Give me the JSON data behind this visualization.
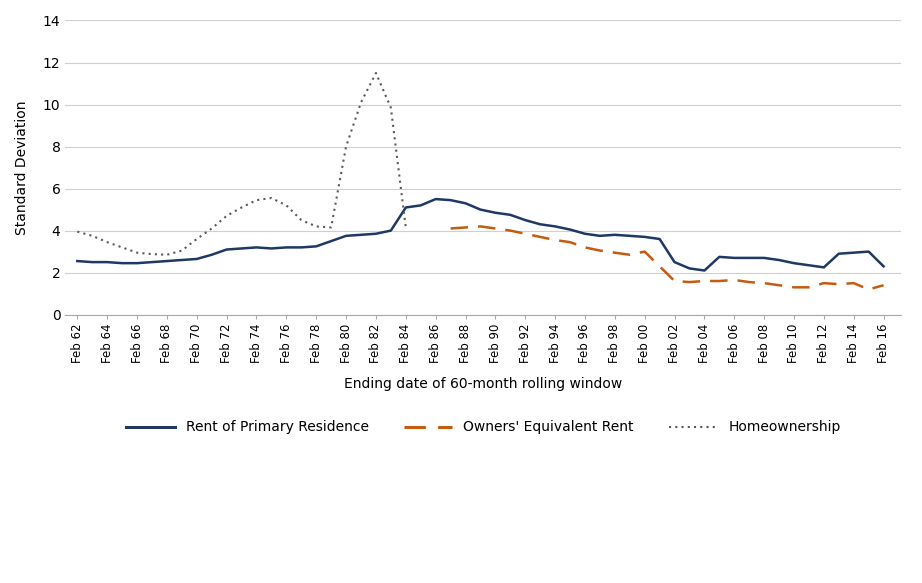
{
  "xlabel": "Ending date of 60-month rolling window",
  "ylabel": "Standard Deviation",
  "ylim": [
    0,
    14
  ],
  "yticks": [
    0,
    2,
    4,
    6,
    8,
    10,
    12,
    14
  ],
  "background_color": "#ffffff",
  "rent_color": "#1f3864",
  "oer_color": "#c55a11",
  "home_color": "#595959",
  "x_labels": [
    "Feb 62",
    "Feb 64",
    "Feb 66",
    "Feb 68",
    "Feb 70",
    "Feb 72",
    "Feb 74",
    "Feb 76",
    "Feb 78",
    "Feb 80",
    "Feb 82",
    "Feb 84",
    "Feb 86",
    "Feb 88",
    "Feb 90",
    "Feb 92",
    "Feb 94",
    "Feb 96",
    "Feb 98",
    "Feb 00",
    "Feb 02",
    "Feb 04",
    "Feb 06",
    "Feb 08",
    "Feb 10",
    "Feb 12",
    "Feb 14",
    "Feb 16"
  ],
  "rent_x": [
    1962,
    1963,
    1964,
    1965,
    1966,
    1967,
    1968,
    1969,
    1970,
    1971,
    1972,
    1973,
    1974,
    1975,
    1976,
    1977,
    1978,
    1979,
    1980,
    1981,
    1982,
    1983,
    1984,
    1985,
    1986,
    1987,
    1988,
    1989,
    1990,
    1991,
    1992,
    1993,
    1994,
    1995,
    1996,
    1997,
    1998,
    1999,
    2000,
    2001,
    2002,
    2003,
    2004,
    2005,
    2006,
    2007,
    2008,
    2009,
    2010,
    2011,
    2012,
    2013,
    2014,
    2015,
    2016
  ],
  "rent_y": [
    2.55,
    2.5,
    2.5,
    2.45,
    2.45,
    2.5,
    2.55,
    2.6,
    2.65,
    2.85,
    3.1,
    3.15,
    3.2,
    3.15,
    3.2,
    3.2,
    3.25,
    3.5,
    3.75,
    3.8,
    3.85,
    4.0,
    5.1,
    5.2,
    5.5,
    5.45,
    5.3,
    5.0,
    4.85,
    4.75,
    4.5,
    4.3,
    4.2,
    4.05,
    3.85,
    3.75,
    3.8,
    3.75,
    3.7,
    3.6,
    2.5,
    2.2,
    2.1,
    2.75,
    2.7,
    2.7,
    2.7,
    2.6,
    2.45,
    2.35,
    2.25,
    2.9,
    2.95,
    3.0,
    2.3
  ],
  "oer_x": [
    1987,
    1988,
    1989,
    1990,
    1991,
    1992,
    1993,
    1994,
    1995,
    1996,
    1997,
    1998,
    1999,
    2000,
    2001,
    2002,
    2003,
    2004,
    2005,
    2006,
    2007,
    2008,
    2009,
    2010,
    2011,
    2012,
    2013,
    2014,
    2015,
    2016
  ],
  "oer_y": [
    4.1,
    4.15,
    4.2,
    4.1,
    4.0,
    3.85,
    3.7,
    3.55,
    3.45,
    3.2,
    3.05,
    2.95,
    2.85,
    3.0,
    2.3,
    1.6,
    1.55,
    1.6,
    1.6,
    1.65,
    1.55,
    1.5,
    1.4,
    1.3,
    1.3,
    1.5,
    1.45,
    1.5,
    1.2,
    1.4
  ],
  "home_x": [
    1962,
    1963,
    1964,
    1965,
    1966,
    1967,
    1968,
    1969,
    1970,
    1971,
    1972,
    1973,
    1974,
    1975,
    1976,
    1977,
    1978,
    1979,
    1980,
    1981,
    1982,
    1983,
    1984
  ],
  "home_y": [
    3.95,
    3.75,
    3.45,
    3.2,
    2.95,
    2.88,
    2.85,
    3.05,
    3.6,
    4.1,
    4.7,
    5.1,
    5.45,
    5.55,
    5.2,
    4.5,
    4.2,
    4.15,
    8.0,
    10.1,
    11.5,
    9.85,
    4.15
  ]
}
